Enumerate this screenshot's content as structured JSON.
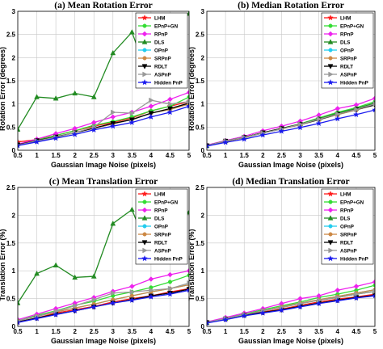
{
  "figure": {
    "legend_position": "top-right",
    "grid": true
  },
  "series_styles": [
    {
      "name": "LHM",
      "color": "#ff1a1a",
      "marker": "star"
    },
    {
      "name": "EPnP+GN",
      "color": "#33dd33",
      "marker": "circle"
    },
    {
      "name": "RPnP",
      "color": "#ee22ee",
      "marker": "diamond"
    },
    {
      "name": "DLS",
      "color": "#228b22",
      "marker": "triangle-up"
    },
    {
      "name": "OPnP",
      "color": "#22ccee",
      "marker": "circle"
    },
    {
      "name": "SRPnP",
      "color": "#cc8844",
      "marker": "circle"
    },
    {
      "name": "RDLT",
      "color": "#000000",
      "marker": "triangle-down"
    },
    {
      "name": "ASPnP",
      "color": "#999999",
      "marker": "triangle-right"
    },
    {
      "name": "Hidden PnP",
      "color": "#1a1aee",
      "marker": "star"
    }
  ],
  "chart_data": [
    {
      "type": "line",
      "title": "(a) Mean Rotation Error",
      "xlabel": "Gaussian Image Noise (pixels)",
      "ylabel": "Rotation Error (degrees)",
      "x": [
        0.5,
        1,
        1.5,
        2,
        2.5,
        3,
        3.5,
        4,
        4.5,
        5
      ],
      "xticks": [
        "0.5",
        "1",
        "1.5",
        "2",
        "2.5",
        "3",
        "3.5",
        "4",
        "4.5",
        "5"
      ],
      "xlim": [
        0.5,
        5
      ],
      "ylim": [
        0,
        3
      ],
      "yticks": [
        "0",
        "0.5",
        "1",
        "1.5",
        "2",
        "2.5",
        "3"
      ],
      "series": [
        {
          "name": "LHM",
          "values": [
            0.18,
            0.23,
            0.32,
            0.42,
            0.52,
            0.6,
            0.7,
            0.85,
            0.95,
            1.05
          ]
        },
        {
          "name": "EPnP+GN",
          "values": [
            0.12,
            0.22,
            0.32,
            0.42,
            0.54,
            0.62,
            0.72,
            0.85,
            0.95,
            1.15
          ]
        },
        {
          "name": "RPnP",
          "values": [
            0.13,
            0.24,
            0.36,
            0.47,
            0.6,
            0.72,
            0.82,
            0.95,
            1.1,
            1.25
          ]
        },
        {
          "name": "DLS",
          "values": [
            0.45,
            1.15,
            1.12,
            1.23,
            1.15,
            2.1,
            2.55,
            1.42,
            2.85,
            2.95
          ]
        },
        {
          "name": "OPnP",
          "values": [
            0.11,
            0.2,
            0.28,
            0.38,
            0.47,
            0.57,
            0.67,
            0.8,
            0.88,
            1.0
          ]
        },
        {
          "name": "SRPnP",
          "values": [
            0.11,
            0.2,
            0.28,
            0.38,
            0.47,
            0.57,
            0.67,
            0.8,
            0.88,
            1.0
          ]
        },
        {
          "name": "RDLT",
          "values": [
            0.12,
            0.21,
            0.29,
            0.38,
            0.48,
            0.58,
            0.66,
            0.8,
            0.9,
            1.02
          ]
        },
        {
          "name": "ASPnP",
          "values": [
            0.11,
            0.2,
            0.28,
            0.38,
            0.5,
            0.82,
            0.8,
            1.08,
            1.0,
            1.05
          ]
        },
        {
          "name": "Hidden PnP",
          "values": [
            0.1,
            0.18,
            0.26,
            0.34,
            0.44,
            0.52,
            0.6,
            0.72,
            0.82,
            0.95
          ]
        }
      ]
    },
    {
      "type": "line",
      "title": "(b) Median Rotation Error",
      "xlabel": "Gaussian Image Noise (pixels)",
      "ylabel": "Rotation Error (degrees)",
      "x": [
        0.5,
        1,
        1.5,
        2,
        2.5,
        3,
        3.5,
        4,
        4.5,
        5
      ],
      "xticks": [
        "0.5",
        "1",
        "1.5",
        "2",
        "2.5",
        "3",
        "3.5",
        "4",
        "4.5",
        "5"
      ],
      "xlim": [
        0.5,
        5
      ],
      "ylim": [
        0,
        3
      ],
      "yticks": [
        "0",
        "0.5",
        "1",
        "1.5",
        "2",
        "2.5",
        "3"
      ],
      "series": [
        {
          "name": "LHM",
          "values": [
            0.1,
            0.2,
            0.28,
            0.38,
            0.47,
            0.55,
            0.67,
            0.77,
            0.88,
            1.0
          ]
        },
        {
          "name": "EPnP+GN",
          "values": [
            0.1,
            0.2,
            0.28,
            0.38,
            0.47,
            0.57,
            0.7,
            0.82,
            0.92,
            1.05
          ]
        },
        {
          "name": "RPnP",
          "values": [
            0.11,
            0.21,
            0.3,
            0.42,
            0.52,
            0.63,
            0.76,
            0.9,
            0.98,
            1.12
          ]
        },
        {
          "name": "DLS",
          "values": [
            0.1,
            0.2,
            0.28,
            0.38,
            0.47,
            0.57,
            0.68,
            0.8,
            0.9,
            1.02
          ]
        },
        {
          "name": "OPnP",
          "values": [
            0.1,
            0.19,
            0.27,
            0.37,
            0.46,
            0.55,
            0.66,
            0.77,
            0.87,
            0.98
          ]
        },
        {
          "name": "SRPnP",
          "values": [
            0.1,
            0.19,
            0.27,
            0.37,
            0.46,
            0.55,
            0.66,
            0.77,
            0.87,
            0.98
          ]
        },
        {
          "name": "RDLT",
          "values": [
            0.1,
            0.2,
            0.28,
            0.38,
            0.47,
            0.56,
            0.66,
            0.78,
            0.88,
            0.98
          ]
        },
        {
          "name": "ASPnP",
          "values": [
            0.1,
            0.2,
            0.28,
            0.37,
            0.46,
            0.56,
            0.67,
            0.78,
            0.88,
            1.0
          ]
        },
        {
          "name": "Hidden PnP",
          "values": [
            0.09,
            0.17,
            0.24,
            0.33,
            0.41,
            0.49,
            0.58,
            0.68,
            0.77,
            0.87
          ]
        }
      ]
    },
    {
      "type": "line",
      "title": "(c) Mean Translation Error",
      "xlabel": "Gaussian Image Noise (pixels)",
      "ylabel": "Translation Error (%)",
      "x": [
        0.5,
        1,
        1.5,
        2,
        2.5,
        3,
        3.5,
        4,
        4.5,
        5
      ],
      "xticks": [
        "0.5",
        "1",
        "1.5",
        "2",
        "2.5",
        "3",
        "3.5",
        "4",
        "4.5",
        "5"
      ],
      "xlim": [
        0.5,
        5
      ],
      "ylim": [
        0,
        2.5
      ],
      "yticks": [
        "0",
        "0.5",
        "1",
        "1.5",
        "2",
        "2.5"
      ],
      "series": [
        {
          "name": "LHM",
          "values": [
            0.08,
            0.15,
            0.24,
            0.3,
            0.36,
            0.44,
            0.5,
            0.55,
            0.62,
            0.68
          ]
        },
        {
          "name": "EPnP+GN",
          "values": [
            0.1,
            0.2,
            0.28,
            0.38,
            0.45,
            0.55,
            0.62,
            0.7,
            0.8,
            0.92
          ]
        },
        {
          "name": "RPnP",
          "values": [
            0.12,
            0.22,
            0.32,
            0.42,
            0.52,
            0.63,
            0.72,
            0.85,
            0.93,
            1.0
          ]
        },
        {
          "name": "DLS",
          "values": [
            0.42,
            0.95,
            1.1,
            0.88,
            0.9,
            1.85,
            2.1,
            1.25,
            2.18,
            2.05
          ]
        },
        {
          "name": "OPnP",
          "values": [
            0.1,
            0.18,
            0.26,
            0.33,
            0.4,
            0.48,
            0.55,
            0.62,
            0.68,
            0.75
          ]
        },
        {
          "name": "SRPnP",
          "values": [
            0.1,
            0.18,
            0.26,
            0.33,
            0.4,
            0.48,
            0.55,
            0.62,
            0.68,
            0.75
          ]
        },
        {
          "name": "RDLT",
          "values": [
            0.08,
            0.15,
            0.22,
            0.28,
            0.35,
            0.42,
            0.48,
            0.55,
            0.6,
            0.67
          ]
        },
        {
          "name": "ASPnP",
          "values": [
            0.1,
            0.18,
            0.27,
            0.37,
            0.48,
            0.6,
            0.62,
            0.65,
            0.68,
            0.78
          ]
        },
        {
          "name": "Hidden PnP",
          "values": [
            0.07,
            0.14,
            0.21,
            0.28,
            0.35,
            0.42,
            0.47,
            0.53,
            0.58,
            0.65
          ]
        }
      ]
    },
    {
      "type": "line",
      "title": "(d) Median Translation Error",
      "xlabel": "Gaussian Image Noise (pixels)",
      "ylabel": "Translation Error (%)",
      "x": [
        0.5,
        1,
        1.5,
        2,
        2.5,
        3,
        3.5,
        4,
        4.5,
        5
      ],
      "xticks": [
        "0.5",
        "1",
        "1.5",
        "2",
        "2.5",
        "3",
        "3.5",
        "4",
        "4.5",
        "5"
      ],
      "xlim": [
        0.5,
        5
      ],
      "ylim": [
        0,
        2.5
      ],
      "yticks": [
        "0",
        "0.5",
        "1",
        "1.5",
        "2",
        "2.5"
      ],
      "series": [
        {
          "name": "LHM",
          "values": [
            0.07,
            0.13,
            0.2,
            0.26,
            0.31,
            0.38,
            0.44,
            0.49,
            0.53,
            0.58
          ]
        },
        {
          "name": "EPnP+GN",
          "values": [
            0.08,
            0.15,
            0.22,
            0.3,
            0.37,
            0.44,
            0.52,
            0.58,
            0.65,
            0.74
          ]
        },
        {
          "name": "RPnP",
          "values": [
            0.08,
            0.16,
            0.24,
            0.32,
            0.41,
            0.5,
            0.55,
            0.65,
            0.72,
            0.8
          ]
        },
        {
          "name": "DLS",
          "values": [
            0.07,
            0.14,
            0.21,
            0.28,
            0.34,
            0.41,
            0.47,
            0.52,
            0.58,
            0.63
          ]
        },
        {
          "name": "OPnP",
          "values": [
            0.07,
            0.14,
            0.21,
            0.28,
            0.35,
            0.42,
            0.48,
            0.54,
            0.6,
            0.66
          ]
        },
        {
          "name": "SRPnP",
          "values": [
            0.07,
            0.14,
            0.21,
            0.28,
            0.35,
            0.42,
            0.48,
            0.54,
            0.6,
            0.66
          ]
        },
        {
          "name": "RDLT",
          "values": [
            0.07,
            0.13,
            0.2,
            0.25,
            0.3,
            0.36,
            0.42,
            0.47,
            0.52,
            0.56
          ]
        },
        {
          "name": "ASPnP",
          "values": [
            0.07,
            0.14,
            0.21,
            0.28,
            0.34,
            0.41,
            0.47,
            0.52,
            0.58,
            0.63
          ]
        },
        {
          "name": "Hidden PnP",
          "values": [
            0.06,
            0.12,
            0.19,
            0.24,
            0.29,
            0.35,
            0.41,
            0.46,
            0.51,
            0.55
          ]
        }
      ]
    }
  ]
}
